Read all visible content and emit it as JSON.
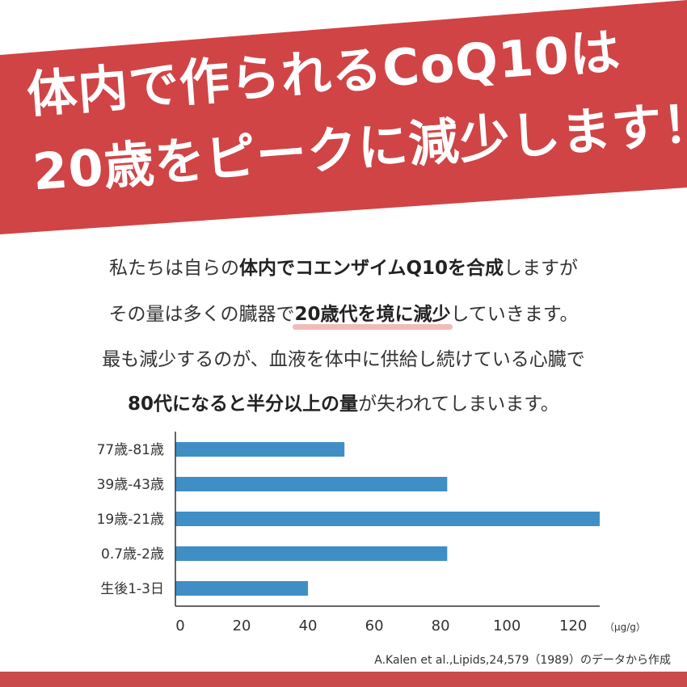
{
  "banner": {
    "color": "#d04446",
    "line1": "体内で作られるCoQ10は",
    "line2": "20歳をピークに減少します！"
  },
  "body": {
    "line1_pre": "私たちは自らの",
    "line1_bold": "体内でコエンザイムQ10を合成",
    "line1_post": "しますが",
    "line2_pre": "その量は多くの臓器で",
    "line2_bold": "20歳代を境に減少",
    "line2_post": "していきます。",
    "line3": "最も減少するのが、血液を体中に供給し続けている心臓で",
    "line4_bold1": "80代になると半分以上の量",
    "line4_post": "が失われてしまいます。"
  },
  "chart_data": {
    "type": "bar",
    "orientation": "horizontal",
    "categories": [
      "77歳-81歳",
      "39歳-43歳",
      "19歳-21歳",
      "0.7歳-2歳",
      "生後1-3日"
    ],
    "values": [
      51,
      82,
      128,
      82,
      40
    ],
    "xlim": [
      0,
      128
    ],
    "xticks": [
      0,
      20,
      40,
      60,
      80,
      100,
      120
    ],
    "xunit": "（μg/g）",
    "bar_color": "#3f8fc6",
    "grid": false
  },
  "source": "A.Kalen et al.,Lipids,24,579（1989）のデータから作成",
  "footer": {
    "color": "#c94a4b"
  }
}
